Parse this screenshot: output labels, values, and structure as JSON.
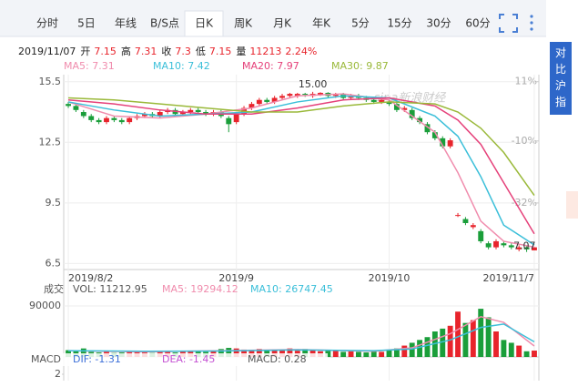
{
  "tabs": [
    "分时",
    "5日",
    "年线",
    "B/S点",
    "日K",
    "周K",
    "月K",
    "年K",
    "5分",
    "15分",
    "30分",
    "60分"
  ],
  "active_tab": 4,
  "compare_button": "对比沪指",
  "info": {
    "date": "2019/11/07",
    "items": [
      {
        "label": "开",
        "value": 7.15
      },
      {
        "label": "高",
        "value": 7.31
      },
      {
        "label": "收",
        "value": 7.3
      },
      {
        "label": "低",
        "value": 7.15
      },
      {
        "label": "量",
        "value": 11213
      },
      {
        "label": null,
        "value": "2.24%"
      }
    ]
  },
  "chart_data": {
    "type": "candlestick",
    "watermark": "sina新浪财经",
    "up_color": "#e8242c",
    "down_color": "#1a9e3a",
    "xlim": [
      -0.6,
      61.6
    ],
    "xticks": [
      {
        "value": 0,
        "label": "2019/8/2"
      },
      {
        "value": 22,
        "label": "2019/9"
      },
      {
        "value": 42,
        "label": "2019/10"
      },
      {
        "value": 61,
        "label": "2019/11/7"
      }
    ],
    "ylim": [
      6.2,
      15.85
    ],
    "yticks": [
      15.5,
      12.5,
      9.5,
      6.5
    ],
    "y2lim": [
      -55.6,
      13.5
    ],
    "y2ticks": [
      {
        "value": 11,
        "label": "11%"
      },
      {
        "value": -10,
        "label": "-10%"
      },
      {
        "value": -32,
        "label": "-32%"
      }
    ],
    "grid": true,
    "candles": {
      "open": [
        14.4,
        14.3,
        14.0,
        13.8,
        13.6,
        13.5,
        13.7,
        13.6,
        13.5,
        13.7,
        13.8,
        13.9,
        13.8,
        14.0,
        14.1,
        13.9,
        14.0,
        14.1,
        14.0,
        13.9,
        14.0,
        13.7,
        13.5,
        13.9,
        14.2,
        14.4,
        14.6,
        14.5,
        14.7,
        14.8,
        14.8,
        14.9,
        14.8,
        14.85,
        14.95,
        14.8,
        14.9,
        14.7,
        14.8,
        14.7,
        14.6,
        14.5,
        14.5,
        14.4,
        14.1,
        14.1,
        13.7,
        13.4,
        13.0,
        12.7,
        12.3,
        8.9,
        8.7,
        8.3,
        8.1,
        7.5,
        7.3,
        7.5,
        7.4,
        7.2,
        7.3,
        7.15
      ],
      "high": [
        14.5,
        14.4,
        14.1,
        13.9,
        13.7,
        13.8,
        13.8,
        13.7,
        13.8,
        13.9,
        14.0,
        14.0,
        14.1,
        14.2,
        14.2,
        14.1,
        14.2,
        14.2,
        14.1,
        14.1,
        14.1,
        13.8,
        14.0,
        14.3,
        14.5,
        14.7,
        14.7,
        14.8,
        14.9,
        14.95,
        14.95,
        14.95,
        15.0,
        14.98,
        14.98,
        14.95,
        14.95,
        14.9,
        14.9,
        14.8,
        14.7,
        14.7,
        14.6,
        14.5,
        14.3,
        14.2,
        13.8,
        13.5,
        13.1,
        12.8,
        12.7,
        9.0,
        8.8,
        8.5,
        8.2,
        7.6,
        7.7,
        7.6,
        7.5,
        7.4,
        7.35,
        7.31
      ],
      "low": [
        14.2,
        14.0,
        13.7,
        13.5,
        13.4,
        13.4,
        13.5,
        13.4,
        13.4,
        13.6,
        13.7,
        13.7,
        13.7,
        13.9,
        13.8,
        13.8,
        13.9,
        13.9,
        13.8,
        13.8,
        13.7,
        13.0,
        13.4,
        13.8,
        14.1,
        14.3,
        14.4,
        14.4,
        14.6,
        14.7,
        14.7,
        14.75,
        14.7,
        14.8,
        14.7,
        14.7,
        14.6,
        14.6,
        14.6,
        14.5,
        14.4,
        14.4,
        14.3,
        14.0,
        14.0,
        13.6,
        13.4,
        12.9,
        12.6,
        12.2,
        12.2,
        8.8,
        8.4,
        8.2,
        7.5,
        7.2,
        7.2,
        7.3,
        7.2,
        7.1,
        7.07,
        7.15
      ],
      "close": [
        14.3,
        14.1,
        13.8,
        13.6,
        13.5,
        13.7,
        13.6,
        13.5,
        13.7,
        13.8,
        13.9,
        13.8,
        14.0,
        14.1,
        13.9,
        14.0,
        14.1,
        14.0,
        13.9,
        14.0,
        13.8,
        13.4,
        13.9,
        14.2,
        14.4,
        14.6,
        14.5,
        14.7,
        14.8,
        14.9,
        14.9,
        14.85,
        14.9,
        14.95,
        14.8,
        14.9,
        14.7,
        14.8,
        14.7,
        14.6,
        14.5,
        14.6,
        14.4,
        14.1,
        14.2,
        13.7,
        13.5,
        13.0,
        12.7,
        12.3,
        12.6,
        8.9,
        8.5,
        8.4,
        7.6,
        7.3,
        7.6,
        7.4,
        7.3,
        7.3,
        7.2,
        7.3
      ]
    },
    "annotations": [
      {
        "index": 32,
        "value": 15.0,
        "label": "15.00"
      },
      {
        "index": 60,
        "value": 7.07,
        "label": "7.07"
      }
    ],
    "series": [
      {
        "name": "MA5",
        "legend": "MA5: 7.31",
        "color": "#f08cad",
        "x": [
          0,
          6,
          12,
          18,
          24,
          30,
          36,
          42,
          48,
          51,
          54,
          57,
          61
        ],
        "values": [
          14.5,
          13.8,
          13.7,
          13.9,
          14.2,
          14.8,
          14.9,
          14.6,
          13.0,
          11.0,
          8.6,
          7.6,
          7.31
        ]
      },
      {
        "name": "MA10",
        "legend": "MA10: 7.42",
        "color": "#3bbfd9",
        "x": [
          0,
          6,
          12,
          18,
          24,
          30,
          36,
          42,
          48,
          51,
          54,
          57,
          61
        ],
        "values": [
          14.5,
          14.1,
          13.8,
          13.9,
          14.0,
          14.5,
          14.8,
          14.7,
          13.8,
          12.8,
          10.8,
          8.4,
          7.42
        ]
      },
      {
        "name": "MA20",
        "legend": "MA20: 7.97",
        "color": "#e5417a",
        "x": [
          0,
          6,
          12,
          18,
          24,
          30,
          36,
          42,
          48,
          51,
          54,
          57,
          61
        ],
        "values": [
          14.6,
          14.4,
          14.1,
          13.9,
          13.9,
          14.2,
          14.6,
          14.7,
          14.3,
          13.6,
          12.4,
          10.5,
          7.97
        ]
      },
      {
        "name": "MA30",
        "legend": "MA30: 9.87",
        "color": "#9ab93a",
        "x": [
          0,
          6,
          12,
          18,
          24,
          30,
          36,
          42,
          48,
          51,
          54,
          57,
          61
        ],
        "values": [
          14.7,
          14.6,
          14.4,
          14.2,
          14.0,
          14.0,
          14.3,
          14.5,
          14.4,
          14.0,
          13.2,
          12.0,
          9.87
        ]
      }
    ],
    "volume": {
      "label": "成交",
      "legend": "VOL: 11212.95",
      "ylim": [
        0,
        90000
      ],
      "yticks": [
        90000
      ],
      "values": [
        12000,
        10000,
        15000,
        9000,
        8000,
        9000,
        7000,
        8000,
        9000,
        10000,
        8000,
        7000,
        9000,
        10000,
        8000,
        9000,
        11000,
        10000,
        9000,
        12000,
        14000,
        16000,
        15000,
        13000,
        12000,
        14000,
        11000,
        13000,
        12000,
        15000,
        11000,
        14000,
        13000,
        10000,
        12000,
        11000,
        9000,
        10000,
        9000,
        8000,
        10000,
        9000,
        12000,
        15000,
        20000,
        25000,
        30000,
        35000,
        45000,
        50000,
        55000,
        80000,
        60000,
        65000,
        85000,
        70000,
        45000,
        30000,
        25000,
        20000,
        10000,
        11212.95
      ],
      "series": [
        {
          "name": "MA5",
          "legend": "MA5: 19294.12",
          "color": "#f08cad",
          "x": [
            0,
            10,
            20,
            30,
            40,
            45,
            50,
            54,
            57,
            61
          ],
          "values": [
            11000,
            9000,
            11000,
            13000,
            10000,
            16000,
            41000,
            71000,
            61000,
            19294.12
          ]
        },
        {
          "name": "MA10",
          "legend": "MA10: 26747.45",
          "color": "#3bbfd9",
          "x": [
            0,
            10,
            20,
            30,
            40,
            45,
            50,
            54,
            57,
            61
          ],
          "values": [
            11000,
            10000,
            10500,
            12500,
            11000,
            14000,
            30000,
            52000,
            58000,
            26747.45
          ]
        }
      ]
    },
    "macd": {
      "label": "MACD",
      "dif": "DIF: -1.31",
      "dea": "DEA: -1.45",
      "macd": "MACD: 0.28",
      "ylim": [
        -3,
        3
      ],
      "yticks": [
        2
      ]
    }
  }
}
